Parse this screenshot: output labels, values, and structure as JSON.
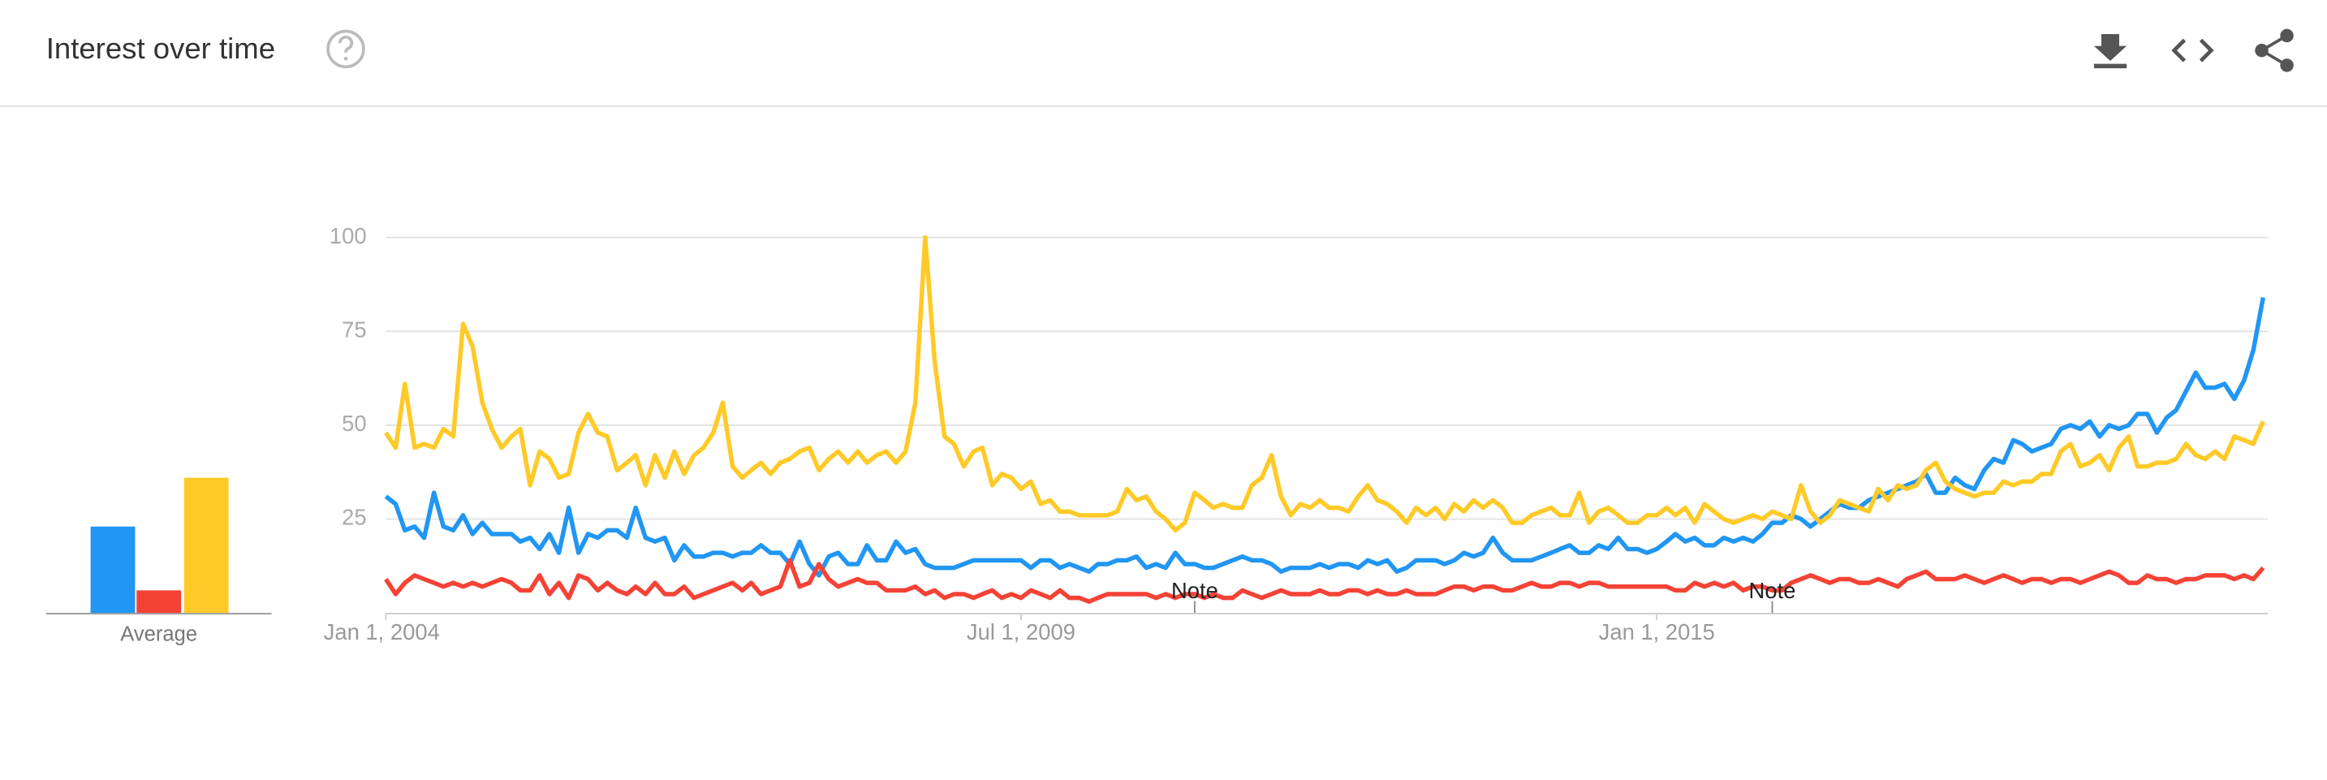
{
  "header": {
    "title": "Interest over time"
  },
  "chart_data": {
    "type": "line",
    "x": [
      "2004-01-01",
      "2004-02-01",
      "2004-03-01",
      "2004-04-01",
      "2004-05-01",
      "2004-06-01",
      "2004-07-01",
      "2004-08-01",
      "2004-09-01",
      "2004-10-01",
      "2004-11-01",
      "2004-12-01",
      "2005-01-01",
      "2005-02-01",
      "2005-03-01",
      "2005-04-01",
      "2005-05-01",
      "2005-06-01",
      "2005-07-01",
      "2005-08-01",
      "2005-09-01",
      "2005-10-01",
      "2005-11-01",
      "2005-12-01",
      "2006-01-01",
      "2006-02-01",
      "2006-03-01",
      "2006-04-01",
      "2006-05-01",
      "2006-06-01",
      "2006-07-01",
      "2006-08-01",
      "2006-09-01",
      "2006-10-01",
      "2006-11-01",
      "2006-12-01",
      "2007-01-01",
      "2007-02-01",
      "2007-03-01",
      "2007-04-01",
      "2007-05-01",
      "2007-06-01",
      "2007-07-01",
      "2007-08-01",
      "2007-09-01",
      "2007-10-01",
      "2007-11-01",
      "2007-12-01",
      "2008-01-01",
      "2008-02-01",
      "2008-03-01",
      "2008-04-01",
      "2008-05-01",
      "2008-06-01",
      "2008-07-01",
      "2008-08-01",
      "2008-09-01",
      "2008-10-01",
      "2008-11-01",
      "2008-12-01",
      "2009-01-01",
      "2009-02-01",
      "2009-03-01",
      "2009-04-01",
      "2009-05-01",
      "2009-06-01",
      "2009-07-01",
      "2009-08-01",
      "2009-09-01",
      "2009-10-01",
      "2009-11-01",
      "2009-12-01",
      "2010-01-01",
      "2010-02-01",
      "2010-03-01",
      "2010-04-01",
      "2010-05-01",
      "2010-06-01",
      "2010-07-01",
      "2010-08-01",
      "2010-09-01",
      "2010-10-01",
      "2010-11-01",
      "2010-12-01",
      "2011-01-01",
      "2011-02-01",
      "2011-03-01",
      "2011-04-01",
      "2011-05-01",
      "2011-06-01",
      "2011-07-01",
      "2011-08-01",
      "2011-09-01",
      "2011-10-01",
      "2011-11-01",
      "2011-12-01",
      "2012-01-01",
      "2012-02-01",
      "2012-03-01",
      "2012-04-01",
      "2012-05-01",
      "2012-06-01",
      "2012-07-01",
      "2012-08-01",
      "2012-09-01",
      "2012-10-01",
      "2012-11-01",
      "2012-12-01",
      "2013-01-01",
      "2013-02-01",
      "2013-03-01",
      "2013-04-01",
      "2013-05-01",
      "2013-06-01",
      "2013-07-01",
      "2013-08-01",
      "2013-09-01",
      "2013-10-01",
      "2013-11-01",
      "2013-12-01",
      "2014-01-01",
      "2014-02-01",
      "2014-03-01",
      "2014-04-01",
      "2014-05-01",
      "2014-06-01",
      "2014-07-01",
      "2014-08-01",
      "2014-09-01",
      "2014-10-01",
      "2014-11-01",
      "2014-12-01",
      "2015-01-01",
      "2015-02-01",
      "2015-03-01",
      "2015-04-01",
      "2015-05-01",
      "2015-06-01",
      "2015-07-01",
      "2015-08-01",
      "2015-09-01",
      "2015-10-01",
      "2015-11-01",
      "2015-12-01",
      "2016-01-01",
      "2016-02-01",
      "2016-03-01",
      "2016-04-01",
      "2016-05-01",
      "2016-06-01",
      "2016-07-01",
      "2016-08-01",
      "2016-09-01",
      "2016-10-01",
      "2016-11-01",
      "2016-12-01",
      "2017-01-01",
      "2017-02-01",
      "2017-03-01",
      "2017-04-01",
      "2017-05-01",
      "2017-06-01",
      "2017-07-01",
      "2017-08-01",
      "2017-09-01",
      "2017-10-01",
      "2017-11-01",
      "2017-12-01",
      "2018-01-01",
      "2018-02-01",
      "2018-03-01",
      "2018-04-01",
      "2018-05-01",
      "2018-06-01",
      "2018-07-01",
      "2018-08-01",
      "2018-09-01",
      "2018-10-01",
      "2018-11-01",
      "2018-12-01",
      "2019-01-01",
      "2019-02-01",
      "2019-03-01",
      "2019-04-01",
      "2019-05-01",
      "2019-06-01",
      "2019-07-01",
      "2019-08-01",
      "2019-09-01",
      "2019-10-01",
      "2019-11-01",
      "2019-12-01",
      "2020-01-01",
      "2020-02-01",
      "2020-03-01",
      "2020-04-01"
    ],
    "xlim": [
      "2004-01-01",
      "2020-04-01"
    ],
    "xticks": [
      {
        "value": "2004-01-01",
        "label": "Jan 1, 2004"
      },
      {
        "value": "2009-07-01",
        "label": "Jul 1, 2009"
      },
      {
        "value": "2015-01-01",
        "label": "Jan 1, 2015"
      }
    ],
    "ylim": [
      0,
      100
    ],
    "yticks": [
      25,
      50,
      75,
      100
    ],
    "grid": true,
    "average_label": "Average",
    "annotations": [
      {
        "x": "2011-01-01",
        "text": "Note"
      },
      {
        "x": "2016-01-01",
        "text": "Note"
      }
    ],
    "series": [
      {
        "color": "#2196f3",
        "average": 23,
        "values": [
          31,
          29,
          22,
          23,
          20,
          32,
          23,
          22,
          26,
          21,
          24,
          21,
          21,
          21,
          19,
          20,
          17,
          21,
          16,
          28,
          16,
          21,
          20,
          22,
          22,
          20,
          28,
          20,
          19,
          20,
          14,
          18,
          15,
          15,
          16,
          16,
          15,
          16,
          16,
          18,
          16,
          16,
          13,
          19,
          13,
          10,
          15,
          16,
          13,
          13,
          18,
          14,
          14,
          19,
          16,
          17,
          13,
          12,
          12,
          12,
          13,
          14,
          14,
          14,
          14,
          14,
          14,
          12,
          14,
          14,
          12,
          13,
          12,
          11,
          13,
          13,
          14,
          14,
          15,
          12,
          13,
          12,
          16,
          13,
          13,
          12,
          12,
          13,
          14,
          15,
          14,
          14,
          13,
          11,
          12,
          12,
          12,
          13,
          12,
          13,
          13,
          12,
          14,
          13,
          14,
          11,
          12,
          14,
          14,
          14,
          13,
          14,
          16,
          15,
          16,
          20,
          16,
          14,
          14,
          14,
          15,
          16,
          17,
          18,
          16,
          16,
          18,
          17,
          20,
          17,
          17,
          16,
          17,
          19,
          21,
          19,
          20,
          18,
          18,
          20,
          19,
          20,
          19,
          21,
          24,
          24,
          26,
          25,
          23,
          25,
          27,
          29,
          28,
          28,
          30,
          31,
          32,
          33,
          34,
          35,
          37,
          32,
          32,
          36,
          34,
          33,
          38,
          41,
          40,
          46,
          45,
          43,
          44,
          45,
          49,
          50,
          49,
          51,
          47,
          50,
          49,
          50,
          53,
          53,
          48,
          52,
          54,
          59,
          64,
          60,
          60,
          61,
          57,
          62,
          70,
          84
        ]
      },
      {
        "color": "#f44336",
        "average": 6,
        "values": [
          9,
          5,
          8,
          10,
          9,
          8,
          7,
          8,
          7,
          8,
          7,
          8,
          9,
          8,
          6,
          6,
          10,
          5,
          8,
          4,
          10,
          9,
          6,
          8,
          6,
          5,
          7,
          5,
          8,
          5,
          5,
          7,
          4,
          5,
          6,
          7,
          8,
          6,
          8,
          5,
          6,
          7,
          14,
          7,
          8,
          13,
          9,
          7,
          8,
          9,
          8,
          8,
          6,
          6,
          6,
          7,
          5,
          6,
          4,
          5,
          5,
          4,
          5,
          6,
          4,
          5,
          4,
          6,
          5,
          4,
          6,
          4,
          4,
          3,
          4,
          5,
          5,
          5,
          5,
          5,
          4,
          5,
          4,
          5,
          5,
          4,
          5,
          4,
          4,
          6,
          5,
          4,
          5,
          6,
          5,
          5,
          5,
          6,
          5,
          5,
          6,
          6,
          5,
          6,
          5,
          5,
          6,
          5,
          5,
          5,
          6,
          7,
          7,
          6,
          7,
          7,
          6,
          6,
          7,
          8,
          7,
          7,
          8,
          8,
          7,
          8,
          8,
          7,
          7,
          7,
          7,
          7,
          7,
          7,
          6,
          6,
          8,
          7,
          8,
          7,
          8,
          6,
          7,
          7,
          6,
          6,
          8,
          9,
          10,
          9,
          8,
          9,
          9,
          8,
          8,
          9,
          8,
          7,
          9,
          10,
          11,
          9,
          9,
          9,
          10,
          9,
          8,
          9,
          10,
          9,
          8,
          9,
          9,
          8,
          9,
          9,
          8,
          9,
          10,
          11,
          10,
          8,
          8,
          10,
          9,
          9,
          8,
          9,
          9,
          10,
          10,
          10,
          9,
          10,
          9,
          12
        ]
      },
      {
        "color": "#ffca28",
        "average": 36,
        "values": [
          48,
          44,
          61,
          44,
          45,
          44,
          49,
          47,
          77,
          71,
          56,
          49,
          44,
          47,
          49,
          34,
          43,
          41,
          36,
          37,
          48,
          53,
          48,
          47,
          38,
          40,
          42,
          34,
          42,
          36,
          43,
          37,
          42,
          44,
          48,
          56,
          39,
          36,
          38,
          40,
          37,
          40,
          41,
          43,
          44,
          38,
          41,
          43,
          40,
          43,
          40,
          42,
          43,
          40,
          43,
          56,
          100,
          67,
          47,
          45,
          39,
          43,
          44,
          34,
          37,
          36,
          33,
          35,
          29,
          30,
          27,
          27,
          26,
          26,
          26,
          26,
          27,
          33,
          30,
          31,
          27,
          25,
          22,
          24,
          32,
          30,
          28,
          29,
          28,
          28,
          34,
          36,
          42,
          31,
          26,
          29,
          28,
          30,
          28,
          28,
          27,
          31,
          34,
          30,
          29,
          27,
          24,
          28,
          26,
          28,
          25,
          29,
          27,
          30,
          28,
          30,
          28,
          24,
          24,
          26,
          27,
          28,
          26,
          26,
          32,
          24,
          27,
          28,
          26,
          24,
          24,
          26,
          26,
          28,
          26,
          28,
          24,
          29,
          27,
          25,
          24,
          25,
          26,
          25,
          27,
          26,
          25,
          34,
          27,
          24,
          26,
          30,
          29,
          28,
          27,
          33,
          30,
          34,
          33,
          34,
          38,
          40,
          35,
          33,
          32,
          31,
          32,
          32,
          35,
          34,
          35,
          35,
          37,
          37,
          43,
          45,
          39,
          40,
          42,
          38,
          44,
          47,
          39,
          39,
          40,
          40,
          41,
          45,
          42,
          41,
          43,
          41,
          47,
          46,
          45,
          51
        ]
      }
    ]
  }
}
